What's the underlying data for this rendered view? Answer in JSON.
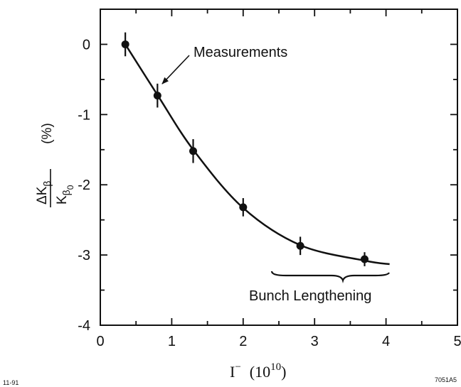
{
  "chart_data": {
    "type": "scatter",
    "x": [
      0.35,
      0.8,
      1.3,
      2.0,
      2.8,
      3.7
    ],
    "y": [
      0.0,
      -0.73,
      -1.52,
      -2.32,
      -2.87,
      -3.06
    ],
    "y_err": [
      0.17,
      0.17,
      0.17,
      0.13,
      0.13,
      0.1
    ],
    "fit_curve": {
      "x": [
        0.35,
        0.8,
        1.3,
        2.0,
        2.8,
        3.7,
        4.05
      ],
      "y": [
        0.0,
        -0.72,
        -1.5,
        -2.33,
        -2.86,
        -3.08,
        -3.13
      ]
    },
    "xlim": [
      0,
      5
    ],
    "ylim": [
      -4,
      0.5
    ],
    "xticks": [
      "0",
      "1",
      "2",
      "3",
      "4",
      "5"
    ],
    "yticks": [
      "0",
      "-1",
      "-2",
      "-3",
      "-4"
    ],
    "xlabel": {
      "main": "I",
      "sup1": "−",
      "units_open": "(10",
      "sup2": "10",
      "units_close": ")"
    },
    "ylabel": {
      "num": "ΔK",
      "num_sub": "β",
      "den": "K",
      "den_sub": "β",
      "den_subsub": "0",
      "unit": "(%)"
    },
    "annotations": {
      "measurements": "Measurements",
      "bunch_lengthening": "Bunch Lengthening"
    },
    "corner_left": "11-91",
    "corner_right": "7051A5",
    "grid": false
  }
}
